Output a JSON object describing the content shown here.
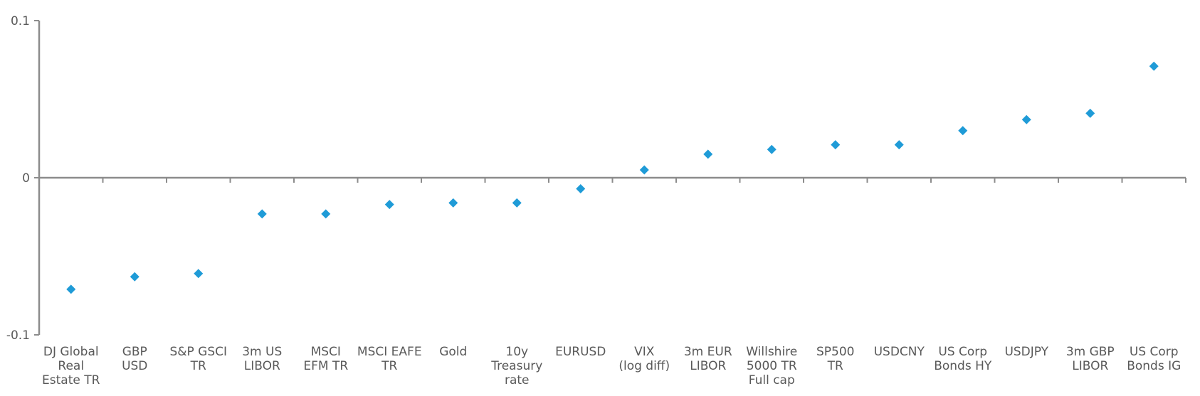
{
  "chart_data": {
    "type": "scatter",
    "title": "",
    "xlabel": "",
    "ylabel": "",
    "ylim": [
      -0.1,
      0.1
    ],
    "yticks": [
      "0.1",
      "0",
      "-0.1"
    ],
    "ytick_values": [
      0.1,
      0,
      -0.1
    ],
    "grid": false,
    "marker": "diamond",
    "color": "#1f9bd7",
    "categories": [
      [
        "DJ Global",
        "Real",
        "Estate TR"
      ],
      [
        "GBP",
        "USD"
      ],
      [
        "S&P GSCI",
        "TR"
      ],
      [
        "3m US",
        "LIBOR"
      ],
      [
        "MSCI",
        "EFM TR"
      ],
      [
        "MSCI EAFE",
        "TR"
      ],
      [
        "Gold"
      ],
      [
        "10y",
        "Treasury",
        "rate"
      ],
      [
        "EURUSD"
      ],
      [
        "VIX",
        "(log diff)"
      ],
      [
        "3m EUR",
        "LIBOR"
      ],
      [
        "Willshire",
        "5000 TR",
        "Full cap"
      ],
      [
        "SP500",
        "TR"
      ],
      [
        "USDCNY"
      ],
      [
        "US Corp",
        "Bonds HY"
      ],
      [
        "USDJPY"
      ],
      [
        "3m GBP",
        "LIBOR"
      ],
      [
        "US Corp",
        "Bonds IG"
      ]
    ],
    "values": [
      -0.071,
      -0.063,
      -0.061,
      -0.023,
      -0.023,
      -0.017,
      -0.016,
      -0.016,
      -0.007,
      0.005,
      0.015,
      0.018,
      0.021,
      0.021,
      0.03,
      0.037,
      0.041,
      0.071
    ]
  }
}
